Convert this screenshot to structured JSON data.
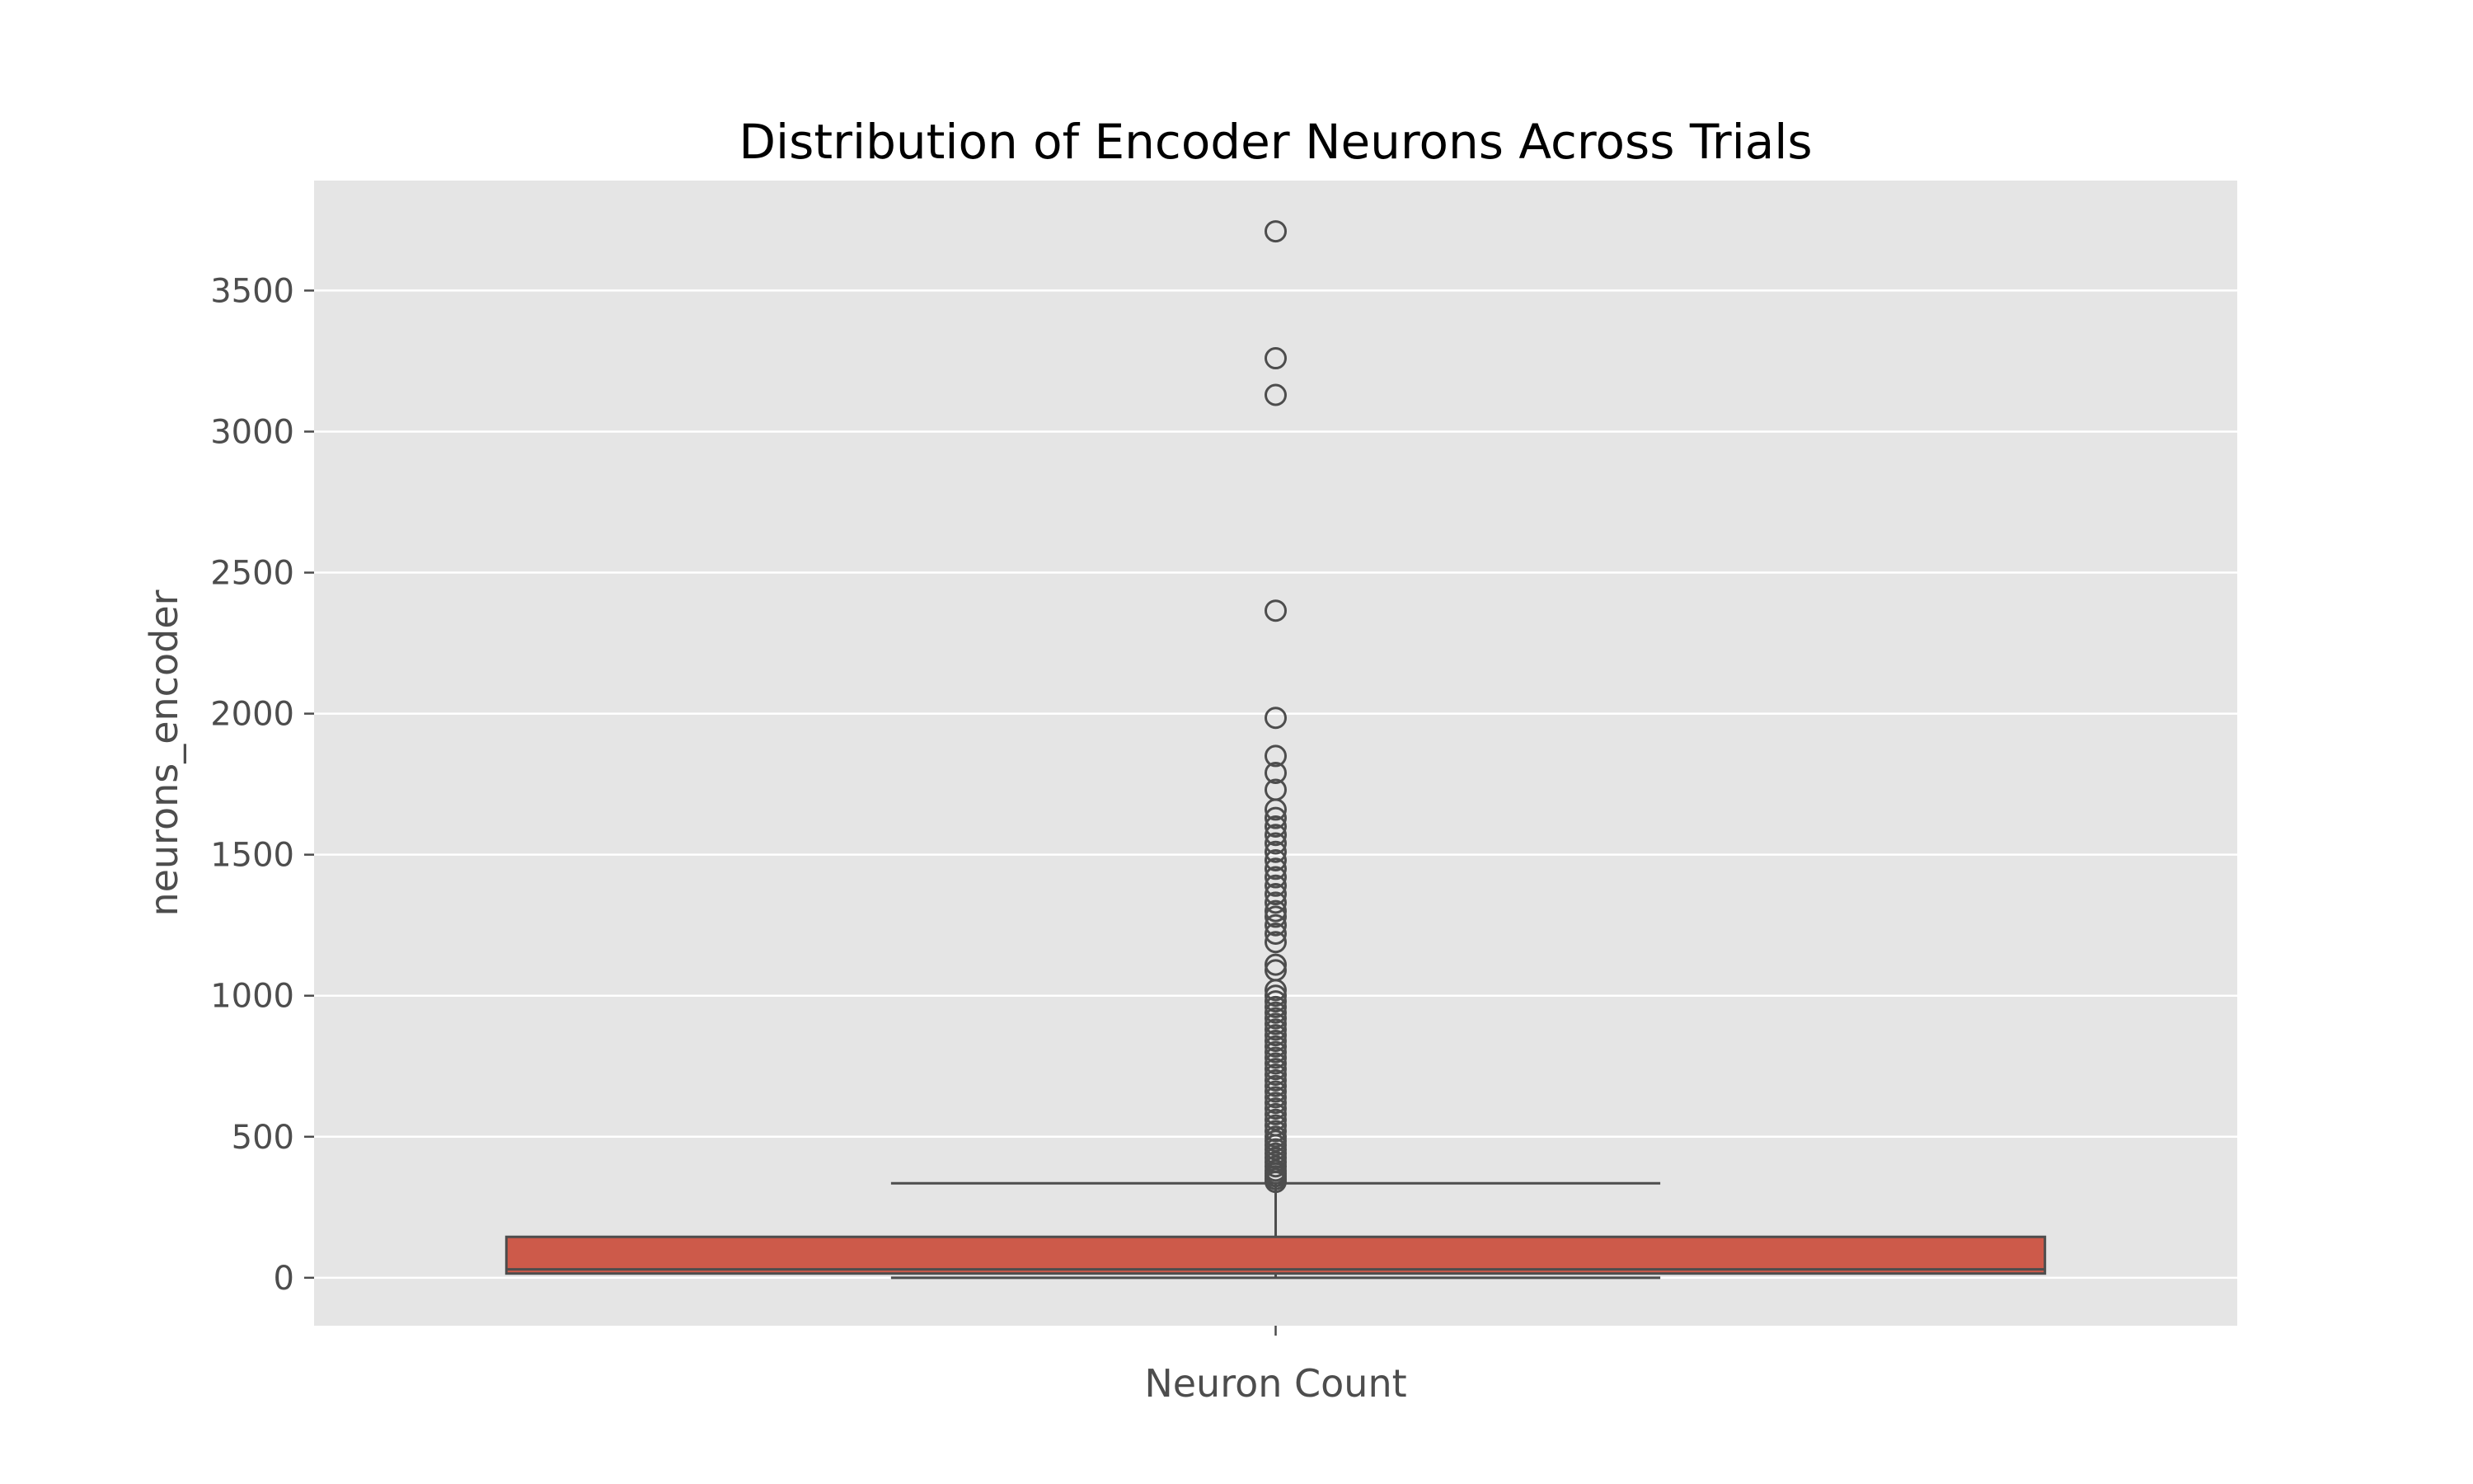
{
  "chart_data": {
    "type": "box",
    "title": "Distribution of Encoder Neurons Across Trials",
    "xlabel": "Neuron Count",
    "ylabel": "neurons_encoder",
    "ylim": [
      -170,
      3890
    ],
    "yticks": [
      0,
      500,
      1000,
      1500,
      2000,
      2500,
      3000,
      3500
    ],
    "grid": true,
    "colors": {
      "plot_background": "#e5e5e5",
      "box_fill": "#cd5a4a",
      "box_edge": "#4d4d4d",
      "gridline": "#ffffff",
      "text": "#4d4d4d"
    },
    "box": {
      "whisker_low": 0,
      "q1": 15,
      "median": 30,
      "q3": 145,
      "whisker_high": 335
    },
    "outliers": [
      340,
      350,
      360,
      370,
      380,
      395,
      410,
      425,
      440,
      455,
      470,
      485,
      500,
      520,
      540,
      560,
      580,
      600,
      620,
      640,
      660,
      680,
      700,
      720,
      740,
      760,
      780,
      800,
      820,
      840,
      860,
      880,
      900,
      920,
      940,
      960,
      980,
      1000,
      1020,
      1090,
      1110,
      1190,
      1220,
      1250,
      1280,
      1300,
      1330,
      1360,
      1390,
      1420,
      1450,
      1480,
      1510,
      1540,
      1570,
      1600,
      1630,
      1660,
      1730,
      1790,
      1850,
      1985,
      2365,
      3130,
      3260,
      3710
    ]
  }
}
